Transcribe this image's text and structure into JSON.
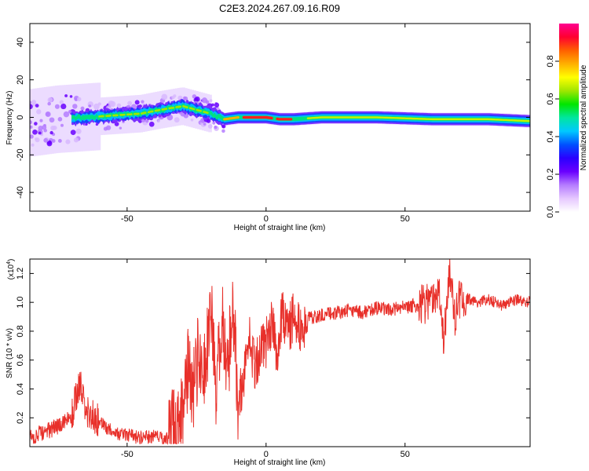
{
  "title": "C2E3.2024.267.09.16.R09",
  "chart_data": [
    {
      "type": "heatmap",
      "xlabel": "Height of straight line (km)",
      "ylabel": "Frequency (Hz)",
      "xlim": [
        -85,
        95
      ],
      "ylim": [
        -50,
        50
      ],
      "x_ticks": [
        -50,
        0,
        50
      ],
      "y_ticks": [
        -40,
        -20,
        0,
        20,
        40
      ],
      "colorbar": {
        "label": "Normalized spectral amplitude",
        "range": [
          0,
          1
        ],
        "ticks": [
          "0.0",
          "0.2",
          "0.4",
          "0.6",
          "0.8"
        ],
        "colors": [
          "#ffffff",
          "#e6c8ff",
          "#b57cff",
          "#6a00ff",
          "#2a00ff",
          "#0050ff",
          "#00c8ff",
          "#00e6a0",
          "#00e600",
          "#a0e600",
          "#ffff00",
          "#ffb000",
          "#ff6000",
          "#ff0030",
          "#ff0090"
        ]
      },
      "ridge": [
        {
          "x": -85,
          "y": -3
        },
        {
          "x": -75,
          "y": -1
        },
        {
          "x": -65,
          "y": 0
        },
        {
          "x": -55,
          "y": 1
        },
        {
          "x": -45,
          "y": 2
        },
        {
          "x": -38,
          "y": 4
        },
        {
          "x": -30,
          "y": 6
        },
        {
          "x": -25,
          "y": 4
        },
        {
          "x": -20,
          "y": 2
        },
        {
          "x": -15,
          "y": -1
        },
        {
          "x": -10,
          "y": 0
        },
        {
          "x": -5,
          "y": 0
        },
        {
          "x": 0,
          "y": 0
        },
        {
          "x": 5,
          "y": -1
        },
        {
          "x": 10,
          "y": -1
        },
        {
          "x": 20,
          "y": 0
        },
        {
          "x": 40,
          "y": 0
        },
        {
          "x": 60,
          "y": -1
        },
        {
          "x": 80,
          "y": -1
        },
        {
          "x": 95,
          "y": -2
        }
      ]
    },
    {
      "type": "line",
      "xlabel": "Height of straight line (km)",
      "ylabel": "SNR (10 * v/v)",
      "y_multiplier": "(x10",
      "y_multiplier_exp": "4",
      "y_multiplier_close": ")",
      "xlim": [
        -85,
        95
      ],
      "ylim": [
        0.0,
        1.3
      ],
      "x_ticks": [
        -50,
        0,
        50
      ],
      "y_ticks": [
        "0.2",
        "0.4",
        "0.6",
        "0.8",
        "1.0",
        "1.2"
      ],
      "color": "#e8302a",
      "series": [
        {
          "x": [
            -85,
            -80,
            -75,
            -70,
            -67,
            -65,
            -60,
            -55,
            -50,
            -45,
            -40,
            -36,
            -34,
            -30,
            -28,
            -26,
            -24,
            -22,
            -20,
            -18,
            -16,
            -14,
            -12,
            -10,
            -8,
            -6,
            -4,
            -2,
            0,
            2,
            4,
            6,
            8,
            10,
            12,
            15,
            18,
            20,
            25,
            30,
            35,
            40,
            45,
            50,
            55,
            60,
            62,
            64,
            66,
            68,
            70,
            75,
            80,
            85,
            90,
            95
          ],
          "y": [
            0.06,
            0.1,
            0.14,
            0.2,
            0.45,
            0.25,
            0.17,
            0.1,
            0.08,
            0.06,
            0.07,
            0.05,
            0.1,
            0.25,
            0.55,
            0.4,
            0.7,
            0.5,
            0.98,
            0.35,
            0.9,
            0.45,
            1.05,
            0.3,
            0.5,
            0.75,
            0.55,
            0.7,
            0.72,
            0.85,
            0.65,
            0.95,
            0.78,
            0.92,
            0.8,
            0.88,
            0.9,
            0.92,
            0.93,
            0.94,
            0.93,
            0.96,
            0.95,
            0.97,
            0.98,
            1.0,
            1.1,
            0.75,
            1.2,
            0.9,
            1.05,
            1.0,
            1.02,
            0.98,
            1.02,
            1.0
          ]
        }
      ]
    }
  ]
}
